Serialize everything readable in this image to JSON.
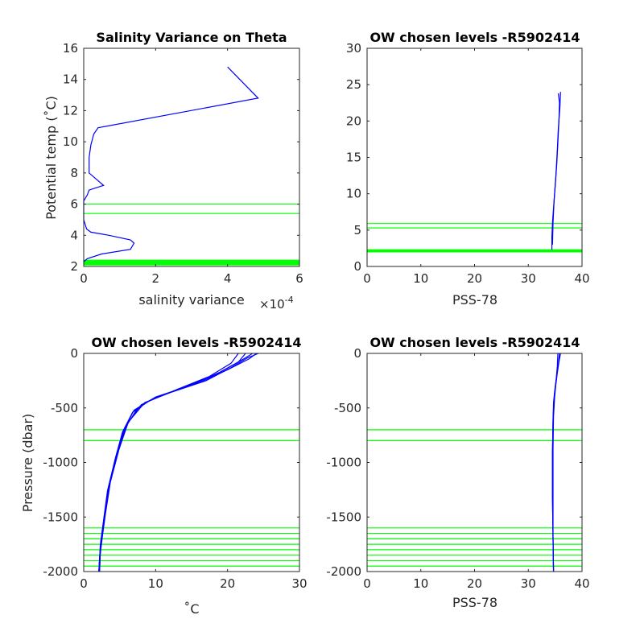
{
  "chart_data": [
    {
      "id": "p1",
      "type": "line",
      "title": "Salinity Variance on Theta",
      "xlabel": "salinity variance",
      "x_exponent": "×10",
      "x_exponent_power": "-4",
      "ylabel": "Potential temp (˚C)",
      "xlim": [
        0,
        6
      ],
      "ylim": [
        2,
        16
      ],
      "xticks": [
        0,
        2,
        4,
        6
      ],
      "yticks": [
        2,
        4,
        6,
        8,
        10,
        12,
        14,
        16
      ],
      "hlines": [
        2.1,
        2.15,
        2.2,
        2.25,
        2.3,
        2.35,
        2.4,
        5.4,
        6.0
      ],
      "line_color": "#0000ff",
      "level_color": "#00ff00",
      "series": [
        {
          "x": [
            4.0,
            4.85,
            0.4,
            0.28,
            0.2,
            0.15,
            0.15,
            0.55,
            0.15,
            0.1,
            0.0,
            0.0,
            0.08,
            0.2,
            0.7,
            1.3,
            1.4,
            1.3,
            0.5,
            0.1,
            0.0
          ],
          "y": [
            14.8,
            12.8,
            10.9,
            10.5,
            9.8,
            9.0,
            8.0,
            7.2,
            6.9,
            6.6,
            6.2,
            5.0,
            4.4,
            4.2,
            4.0,
            3.7,
            3.5,
            3.1,
            2.8,
            2.5,
            2.3
          ]
        }
      ]
    },
    {
      "id": "p2",
      "type": "line",
      "title": "OW chosen levels -R5902414",
      "xlabel": "PSS-78",
      "ylabel": "",
      "xlim": [
        0,
        40
      ],
      "ylim": [
        0,
        30
      ],
      "xticks": [
        0,
        10,
        20,
        30,
        40
      ],
      "yticks": [
        0,
        5,
        10,
        15,
        20,
        25,
        30
      ],
      "hlines": [
        2.0,
        2.05,
        2.1,
        2.15,
        2.2,
        2.25,
        2.3,
        5.3,
        5.9
      ],
      "line_color": "#0000ff",
      "level_color": "#00ff00",
      "series": [
        {
          "x": [
            34.4,
            34.4,
            34.5,
            34.7,
            35.0,
            35.3,
            35.5,
            35.7,
            35.8,
            35.6
          ],
          "y": [
            2.3,
            4.0,
            6.0,
            8.0,
            11.0,
            14.0,
            17.0,
            20.0,
            22.5,
            23.8
          ]
        },
        {
          "x": [
            34.5,
            34.6,
            34.8,
            35.1,
            35.4,
            35.6,
            35.9,
            36.0
          ],
          "y": [
            3.0,
            6.0,
            9.0,
            12.0,
            16.0,
            19.0,
            22.0,
            24.0
          ]
        }
      ]
    },
    {
      "id": "p3",
      "type": "line",
      "title": "OW chosen levels -R5902414",
      "xlabel": "˚C",
      "ylabel": "Pressure (dbar)",
      "xlim": [
        0,
        30
      ],
      "ylim": [
        -2000,
        0
      ],
      "xticks": [
        0,
        10,
        20,
        30
      ],
      "yticks": [
        -2000,
        -1500,
        -1000,
        -500,
        0
      ],
      "hlines": [
        -700,
        -800,
        -1600,
        -1650,
        -1700,
        -1750,
        -1800,
        -1850,
        -1900,
        -1950
      ],
      "line_color": "#0000ff",
      "level_color": "#00ff00",
      "series": [
        {
          "x": [
            24.0,
            23.0,
            20.0,
            16.0,
            11.0,
            8.0,
            6.0,
            4.8,
            3.6,
            2.9,
            2.5,
            2.3,
            2.2
          ],
          "y": [
            0,
            -50,
            -150,
            -270,
            -380,
            -470,
            -650,
            -900,
            -1200,
            -1500,
            -1700,
            -1850,
            -2000
          ]
        },
        {
          "x": [
            23.5,
            22.0,
            19.0,
            15.0,
            10.0,
            7.5,
            5.8,
            4.6,
            3.5,
            2.8,
            2.4,
            2.2,
            2.1
          ],
          "y": [
            0,
            -60,
            -170,
            -290,
            -400,
            -500,
            -680,
            -920,
            -1220,
            -1520,
            -1720,
            -1870,
            -2000
          ]
        },
        {
          "x": [
            22.5,
            21.5,
            18.5,
            14.0,
            9.5,
            7.0,
            5.6,
            4.5,
            3.4,
            2.8,
            2.4,
            2.2,
            2.1
          ],
          "y": [
            0,
            -80,
            -190,
            -310,
            -420,
            -520,
            -700,
            -940,
            -1240,
            -1540,
            -1740,
            -1880,
            -2000
          ]
        },
        {
          "x": [
            24.3,
            22.8,
            20.5,
            17.0,
            12.0,
            8.5,
            6.2,
            4.9,
            3.7,
            3.0,
            2.6,
            2.3,
            2.2
          ],
          "y": [
            0,
            -40,
            -130,
            -250,
            -360,
            -450,
            -630,
            -880,
            -1180,
            -1480,
            -1680,
            -1840,
            -2000
          ]
        },
        {
          "x": [
            21.5,
            20.5,
            17.5,
            13.0,
            9.0,
            6.8,
            5.4,
            4.4,
            3.3,
            2.7,
            2.3,
            2.2,
            2.1
          ],
          "y": [
            0,
            -90,
            -210,
            -330,
            -440,
            -540,
            -720,
            -960,
            -1260,
            -1560,
            -1760,
            -1900,
            -2000
          ]
        }
      ]
    },
    {
      "id": "p4",
      "type": "line",
      "title": "OW chosen levels -R5902414",
      "xlabel": "PSS-78",
      "ylabel": "",
      "xlim": [
        0,
        40
      ],
      "ylim": [
        -2000,
        0
      ],
      "xticks": [
        0,
        10,
        20,
        30,
        40
      ],
      "yticks": [
        -2000,
        -1500,
        -1000,
        -500,
        0
      ],
      "hlines": [
        -700,
        -800,
        -1600,
        -1650,
        -1700,
        -1750,
        -1800,
        -1850,
        -1900,
        -1950
      ],
      "line_color": "#0000ff",
      "level_color": "#00ff00",
      "series": [
        {
          "x": [
            35.8,
            35.6,
            35.3,
            35.0,
            34.8,
            34.6,
            34.5,
            34.5,
            34.6,
            34.7
          ],
          "y": [
            0,
            -100,
            -200,
            -320,
            -420,
            -600,
            -900,
            -1300,
            -1700,
            -2000
          ]
        },
        {
          "x": [
            36.0,
            35.7,
            35.4,
            35.1,
            34.9,
            34.7,
            34.6,
            34.6,
            34.6,
            34.7
          ],
          "y": [
            0,
            -80,
            -180,
            -300,
            -400,
            -580,
            -880,
            -1280,
            -1680,
            -2000
          ]
        },
        {
          "x": [
            35.5,
            35.4,
            35.2,
            34.9,
            34.7,
            34.6,
            34.5,
            34.5,
            34.6,
            34.7
          ],
          "y": [
            0,
            -120,
            -230,
            -350,
            -450,
            -620,
            -920,
            -1320,
            -1720,
            -2000
          ]
        }
      ]
    }
  ]
}
